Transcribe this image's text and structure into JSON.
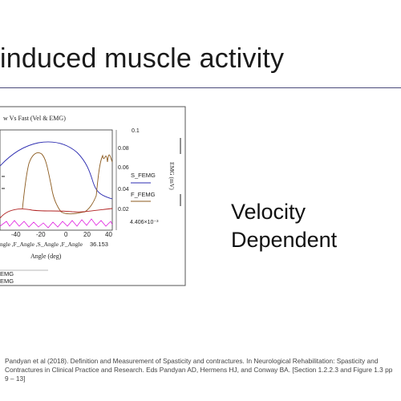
{
  "slide": {
    "title": "induced muscle activity",
    "side_text": [
      "Velocity",
      "Dependent"
    ],
    "footer": "Pandyan et al (2018). Definition and Measurement of Spasticity and contractures. In Neurological Rehabilitation: Spasticity and Contractures in Clinical Practice and Research. Eds Pandyan AD, Hermens HJ, and Conway BA. [Section 1.2.2.3 and Figure 1.3 pp 9 – 13]"
  },
  "figure": {
    "chart_title": "w Vs Fast (Vel & EMG)",
    "x_ticks": [
      "-40",
      "-20",
      "0",
      "20",
      "40"
    ],
    "x_label": "Angle (deg)",
    "x_series_text": "ngle ,F_Angle ,S_Angle ,F_Angle",
    "x_extra_value": "36.153",
    "y2_ticks": [
      "0.1",
      "0.08",
      "0.06",
      "0.04",
      "0.02"
    ],
    "y2_bottom": "4.406×10⁻³",
    "y2_label": "EMG (mV)",
    "right_legend": [
      "S_FEMG",
      "F_FEMG"
    ],
    "bottom_legend": [
      "EMG",
      "EMG"
    ],
    "colors": {
      "blue": "#2b2bb0",
      "brown": "#8b5a1e",
      "red": "#b02020",
      "magenta": "#e020e0"
    }
  }
}
